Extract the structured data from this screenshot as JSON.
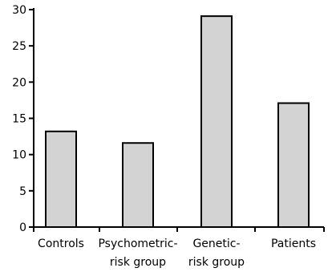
{
  "chart_data": {
    "type": "bar",
    "categories": [
      [
        "Controls"
      ],
      [
        "Psychometric-",
        "risk group"
      ],
      [
        "Genetic-",
        "risk group"
      ],
      [
        "Patients"
      ]
    ],
    "values": [
      13.2,
      11.6,
      29.1,
      17.1
    ],
    "ylim": [
      0,
      30
    ],
    "yticks": [
      "0",
      "5",
      "10",
      "15",
      "20",
      "25",
      "30"
    ],
    "grid": false,
    "colors": {
      "bar_fill": "#d3d3d3",
      "bar_stroke": "#000000",
      "axis": "#000000"
    }
  }
}
